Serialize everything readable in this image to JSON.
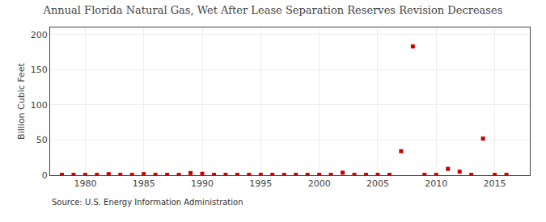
{
  "chart_data": {
    "type": "scatter",
    "title": "Annual Florida Natural Gas, Wet After Lease Separation Reserves Revision Decreases",
    "ylabel": "Billion Cubic Feet",
    "annotations": [
      "Source: U.S. Energy Information Administration"
    ],
    "x": [
      1978,
      1979,
      1980,
      1981,
      1982,
      1983,
      1984,
      1985,
      1986,
      1987,
      1988,
      1989,
      1990,
      1991,
      1992,
      1993,
      1994,
      1995,
      1996,
      1997,
      1998,
      1999,
      2000,
      2001,
      2002,
      2003,
      2004,
      2005,
      2006,
      2007,
      2008,
      2009,
      2010,
      2011,
      2012,
      2013,
      2014,
      2015,
      2016
    ],
    "values": [
      0.5,
      0.5,
      0.5,
      0.5,
      1.5,
      0.5,
      0.5,
      1.5,
      0.5,
      0.5,
      0.5,
      3,
      2,
      0.5,
      0.5,
      0.5,
      0.5,
      0.5,
      0.5,
      0.5,
      0.5,
      0.5,
      0.5,
      0.5,
      3.5,
      0.5,
      0.5,
      0.5,
      0.5,
      34,
      183,
      0.5,
      0.5,
      9,
      5,
      0.5,
      52,
      0.5,
      0.5
    ],
    "color": "#cc0000",
    "marker": "square",
    "xlim": [
      1977,
      2018
    ],
    "ylim": [
      0,
      210
    ],
    "xticks": [
      1980,
      1985,
      1990,
      1995,
      2000,
      2005,
      2010,
      2015
    ],
    "yticks": [
      0,
      50,
      100,
      150,
      200
    ],
    "grid": true
  }
}
